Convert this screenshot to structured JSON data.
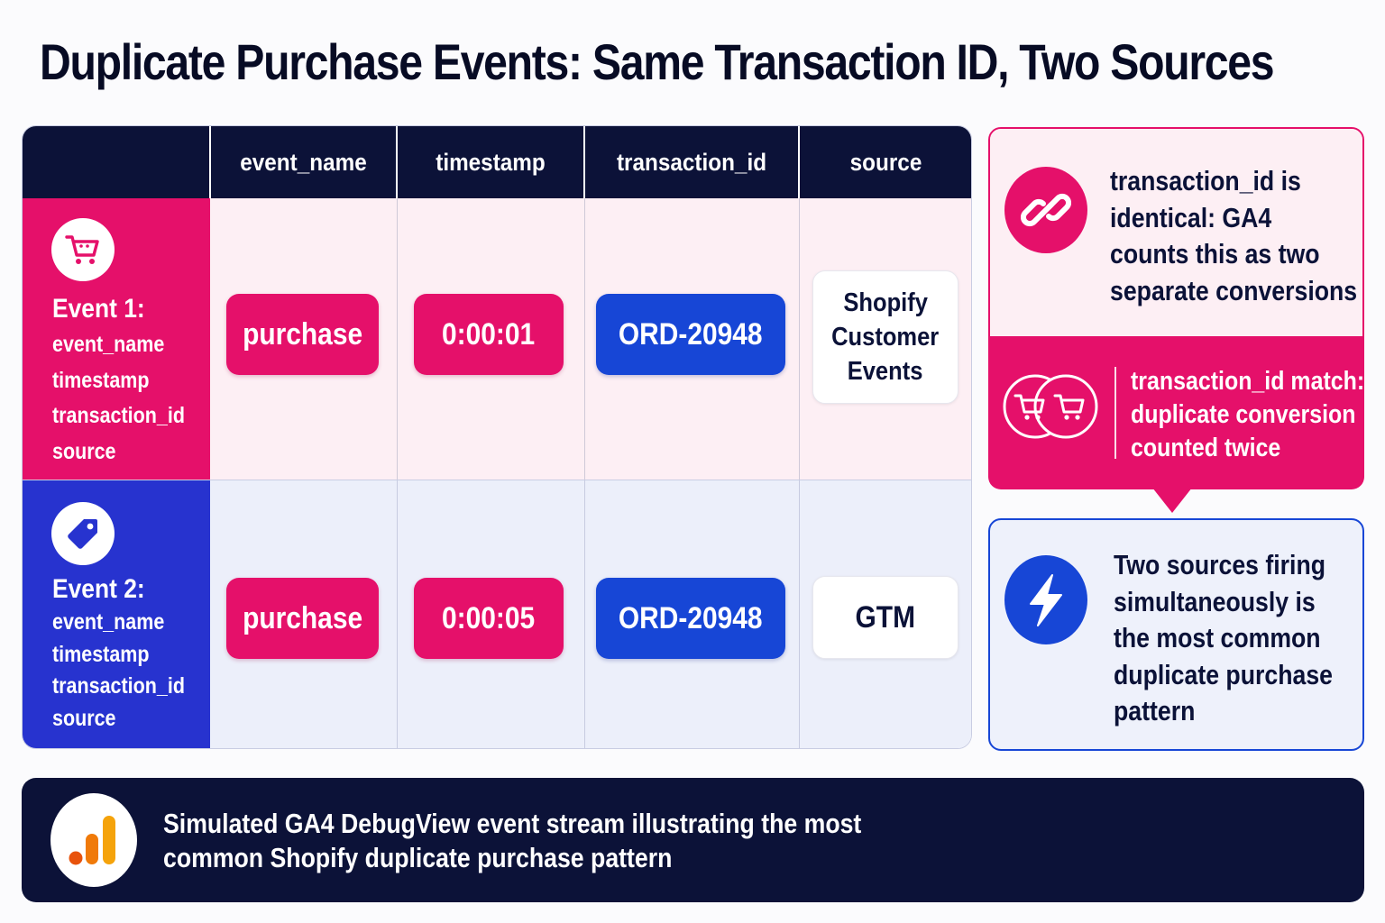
{
  "title": "Duplicate Purchase Events: Same Transaction ID, Two Sources",
  "table": {
    "headers": [
      "event_name",
      "timestamp",
      "transaction_id",
      "source"
    ],
    "rows": [
      {
        "label": "Event 1:",
        "fields": [
          "event_name",
          "timestamp",
          "transaction_id",
          "source"
        ],
        "icon": "cart-icon",
        "event_name": "purchase",
        "timestamp": "0:00:01",
        "transaction_id": "ORD-20948",
        "source": [
          "Shopify",
          "Customer",
          "Events"
        ]
      },
      {
        "label": "Event 2:",
        "fields": [
          "event_name",
          "timestamp",
          "transaction_id",
          "source"
        ],
        "icon": "tag-icon",
        "event_name": "purchase",
        "timestamp": "0:00:05",
        "transaction_id": "ORD-20948",
        "source": [
          "GTM"
        ]
      }
    ]
  },
  "callout_identical": {
    "icon": "link-icon",
    "lines": [
      "transaction_id is",
      "identical: GA4",
      "counts this as two",
      "separate conversions"
    ]
  },
  "callout_match": {
    "icon": "double-cart-icon",
    "lines": [
      "transaction_id match:",
      "duplicate conversion",
      "counted twice"
    ]
  },
  "callout_sources": {
    "icon": "lightning-icon",
    "lines": [
      "Two sources firing",
      "simultaneously is",
      "the most common",
      "duplicate purchase",
      "pattern"
    ]
  },
  "footer": {
    "icon": "ga4-analytics-icon",
    "lines": [
      "Simulated GA4 DebugView event stream illustrating the most",
      "common Shopify duplicate purchase pattern"
    ]
  },
  "colors": {
    "navy": "#0c1238",
    "pink": "#e5106a",
    "blue": "#1746d6",
    "indigo": "#2733cf",
    "orange": "#f5a30b"
  }
}
